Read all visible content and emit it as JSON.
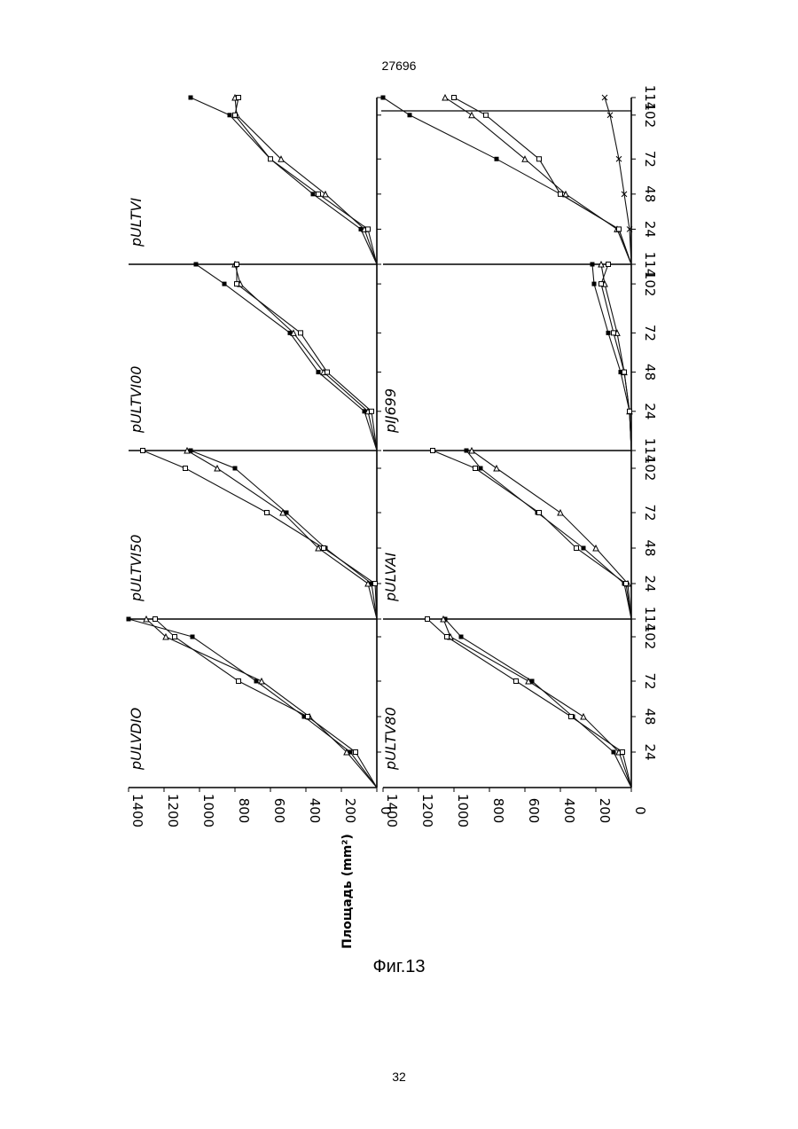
{
  "header": {
    "document_number": "27696"
  },
  "footer": {
    "page_number": "32"
  },
  "figure": {
    "caption": "Фиг.13",
    "ylabel": "Площадь (mm²)"
  },
  "chart_data": [
    {
      "type": "line",
      "title": "pULVDIO",
      "x": [
        0,
        24,
        48,
        72,
        102,
        114
      ],
      "ylim": [
        0,
        1400
      ],
      "xlim": [
        0,
        114
      ],
      "series": [
        {
          "marker": "filled-square",
          "values": [
            0,
            150,
            410,
            680,
            1040,
            1400
          ]
        },
        {
          "marker": "open-triangle",
          "values": [
            0,
            170,
            380,
            650,
            1190,
            1300
          ]
        },
        {
          "marker": "open-square",
          "values": [
            0,
            120,
            390,
            780,
            1140,
            1250
          ]
        }
      ]
    },
    {
      "type": "line",
      "title": "pULTVI50",
      "x": [
        0,
        24,
        48,
        72,
        102,
        114
      ],
      "ylim": [
        0,
        1400
      ],
      "xlim": [
        0,
        114
      ],
      "series": [
        {
          "marker": "filled-square",
          "values": [
            0,
            30,
            290,
            510,
            800,
            1050
          ]
        },
        {
          "marker": "open-triangle",
          "values": [
            0,
            50,
            330,
            530,
            900,
            1070
          ]
        },
        {
          "marker": "open-square",
          "values": [
            0,
            10,
            300,
            620,
            1080,
            1320
          ]
        }
      ]
    },
    {
      "type": "line",
      "title": "pULTVI00",
      "x": [
        0,
        24,
        48,
        72,
        102,
        114
      ],
      "ylim": [
        0,
        1400
      ],
      "xlim": [
        0,
        114
      ],
      "series": [
        {
          "marker": "filled-square",
          "values": [
            0,
            70,
            330,
            490,
            860,
            1020
          ]
        },
        {
          "marker": "open-triangle",
          "values": [
            0,
            50,
            300,
            470,
            770,
            800
          ]
        },
        {
          "marker": "open-square",
          "values": [
            0,
            30,
            280,
            430,
            790,
            790
          ]
        }
      ]
    },
    {
      "type": "line",
      "title": "pULTVI",
      "x": [
        0,
        24,
        48,
        72,
        102,
        114
      ],
      "ylim": [
        0,
        1400
      ],
      "xlim": [
        0,
        114
      ],
      "series": [
        {
          "marker": "filled-square",
          "values": [
            0,
            90,
            360,
            600,
            830,
            1050
          ]
        },
        {
          "marker": "open-triangle",
          "values": [
            0,
            70,
            290,
            540,
            790,
            800
          ]
        },
        {
          "marker": "open-square",
          "values": [
            0,
            50,
            330,
            600,
            800,
            780
          ]
        }
      ]
    },
    {
      "type": "line",
      "title": "pULTV80",
      "x": [
        0,
        24,
        48,
        72,
        102,
        114
      ],
      "ylim": [
        0,
        1400
      ],
      "xlim": [
        0,
        114
      ],
      "series": [
        {
          "marker": "filled-square",
          "values": [
            0,
            100,
            330,
            560,
            960,
            1050
          ]
        },
        {
          "marker": "open-triangle",
          "values": [
            0,
            70,
            270,
            580,
            1020,
            1060
          ]
        },
        {
          "marker": "open-square",
          "values": [
            0,
            50,
            340,
            650,
            1040,
            1150
          ]
        }
      ]
    },
    {
      "type": "line",
      "title": "pULVAI",
      "x": [
        0,
        24,
        48,
        72,
        102,
        114
      ],
      "ylim": [
        0,
        1400
      ],
      "xlim": [
        0,
        114
      ],
      "series": [
        {
          "marker": "filled-square",
          "values": [
            0,
            40,
            270,
            530,
            850,
            930
          ]
        },
        {
          "marker": "open-triangle",
          "values": [
            0,
            20,
            200,
            400,
            760,
            900
          ]
        },
        {
          "marker": "open-square",
          "values": [
            0,
            30,
            310,
            520,
            880,
            1120
          ]
        }
      ]
    },
    {
      "type": "line",
      "title": "pIJ699",
      "x": [
        0,
        24,
        48,
        72,
        102,
        114
      ],
      "ylim": [
        0,
        1400
      ],
      "xlim": [
        0,
        114
      ],
      "series": [
        {
          "marker": "filled-square",
          "values": [
            0,
            10,
            60,
            130,
            210,
            220
          ]
        },
        {
          "marker": "open-triangle",
          "values": [
            0,
            10,
            40,
            80,
            150,
            170
          ]
        },
        {
          "marker": "open-square",
          "values": [
            0,
            10,
            40,
            100,
            170,
            130
          ]
        }
      ]
    },
    {
      "type": "line",
      "title": "",
      "x": [
        0,
        24,
        48,
        72,
        102,
        114
      ],
      "ylim": [
        0,
        1400
      ],
      "xlim": [
        0,
        114
      ],
      "series": [
        {
          "marker": "filled-square",
          "values": [
            0,
            70,
            400,
            760,
            1250,
            1500
          ]
        },
        {
          "marker": "open-triangle",
          "values": [
            0,
            80,
            370,
            600,
            900,
            1050
          ]
        },
        {
          "marker": "open-square",
          "values": [
            0,
            70,
            400,
            520,
            820,
            1000
          ]
        },
        {
          "marker": "cross",
          "values": [
            0,
            10,
            40,
            70,
            120,
            150
          ]
        }
      ]
    }
  ],
  "axes": {
    "y_ticks_upper": [
      "1400",
      "1200",
      "1000",
      "800",
      "600",
      "400",
      "200",
      "0"
    ],
    "y_ticks_lower": [
      "1400",
      "1200",
      "1000",
      "800",
      "600",
      "400",
      "200",
      "0"
    ],
    "y_values": [
      1400,
      1200,
      1000,
      800,
      600,
      400,
      200,
      0
    ],
    "x_ticks": [
      "24",
      "48",
      "72",
      "102",
      "114"
    ],
    "x_values": [
      24,
      48,
      72,
      102,
      114
    ]
  }
}
